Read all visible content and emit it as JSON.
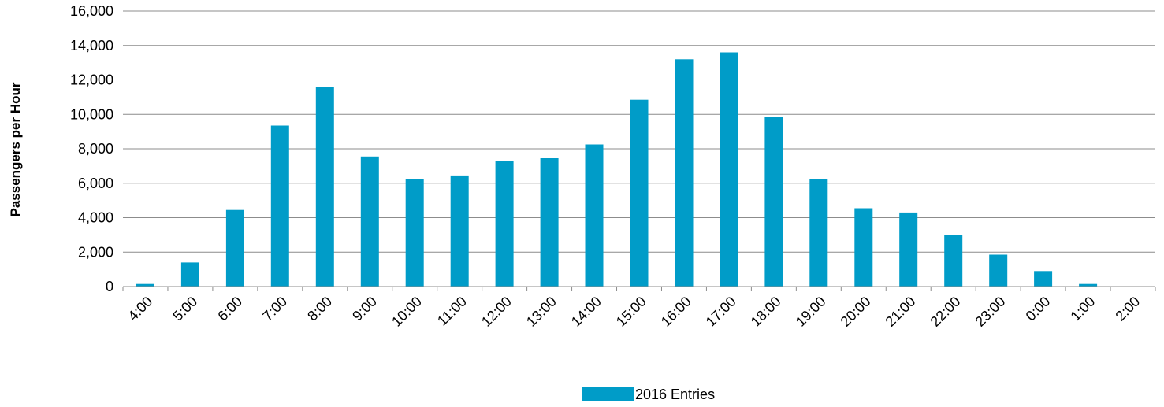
{
  "chart_data": {
    "type": "bar",
    "title": "",
    "xlabel": "",
    "ylabel": "Passengers per Hour",
    "ylim": [
      0,
      16000
    ],
    "yticks": [
      0,
      2000,
      4000,
      6000,
      8000,
      10000,
      12000,
      14000,
      16000
    ],
    "ytick_labels": [
      "0",
      "2,000",
      "4,000",
      "6,000",
      "8,000",
      "10,000",
      "12,000",
      "14,000",
      "16,000"
    ],
    "grid": true,
    "legend_position": "bottom",
    "categories": [
      "4:00",
      "5:00",
      "6:00",
      "7:00",
      "8:00",
      "9:00",
      "10:00",
      "11:00",
      "12:00",
      "13:00",
      "14:00",
      "15:00",
      "16:00",
      "17:00",
      "18:00",
      "19:00",
      "20:00",
      "21:00",
      "22:00",
      "23:00",
      "0:00",
      "1:00",
      "2:00"
    ],
    "series": [
      {
        "name": "2016 Entries",
        "color": "#009CC8",
        "values": [
          150,
          1400,
          4450,
          9350,
          11600,
          7550,
          6250,
          6450,
          7300,
          7450,
          8250,
          10850,
          13200,
          13600,
          9850,
          6250,
          4550,
          4300,
          3000,
          1850,
          900,
          150,
          0
        ]
      }
    ]
  }
}
